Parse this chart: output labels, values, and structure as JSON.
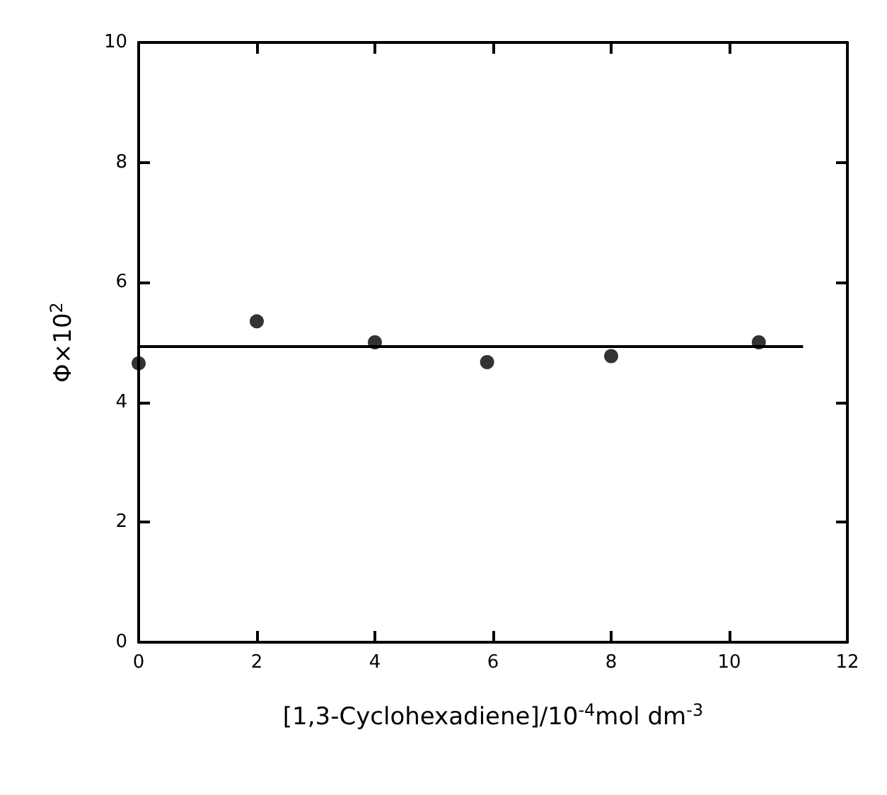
{
  "chart_data": {
    "type": "scatter",
    "xlabel": "[1,3-Cyclohexadiene]/10$^{-4}$mol dm$^{-3}$",
    "ylabel": "Φ×10$^{2}$",
    "xlim": [
      0,
      12
    ],
    "xticks": [
      0,
      2,
      4,
      6,
      8,
      10,
      12
    ],
    "ylim": [
      0,
      10
    ],
    "yticks": [
      0,
      2,
      4,
      6,
      8,
      10
    ],
    "grid": false,
    "marker": "circle",
    "series": [
      {
        "color": "#000000",
        "x": [
          0,
          2,
          4,
          5.9,
          8,
          10.5
        ],
        "values": [
          4.65,
          5.35,
          5,
          4.67,
          4.77,
          5
        ]
      },
      {
        "type": "line",
        "color": "#000000",
        "marker": "none",
        "line_style": "solid",
        "x": [
          0,
          11.25
        ],
        "values": [
          4.93,
          4.93
        ]
      }
    ]
  }
}
